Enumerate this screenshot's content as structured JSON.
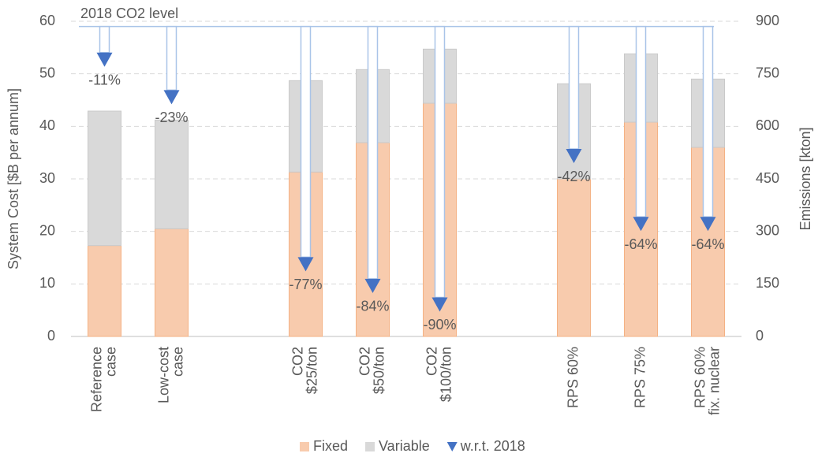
{
  "chart_data": {
    "type": "stacked_bar_with_markers",
    "categories": [
      "Reference\ncase",
      "Low-cost\ncase",
      null,
      "CO2\n$25/ton",
      "CO2\n$50/ton",
      "CO2\n$100/ton",
      null,
      "RPS 60%",
      "RPS 75%",
      "RPS 60%\nfix. nuclear"
    ],
    "series": [
      {
        "name": "Fixed",
        "color": "#f8cbad",
        "values": [
          17.3,
          20.5,
          null,
          31.3,
          36.9,
          44.4,
          null,
          30,
          40.8,
          36
        ]
      },
      {
        "name": "Variable",
        "color": "#d9d9d9",
        "values": [
          25.6,
          20.7,
          null,
          17.4,
          13.9,
          10.3,
          null,
          18.1,
          13,
          13
        ]
      },
      {
        "name": "w.r.t. 2018",
        "color": "#4472c4",
        "axis": "y2",
        "values": [
          788,
          681,
          null,
          204,
          142,
          89,
          null,
          513,
          319,
          319
        ],
        "change_labels": [
          "-11%",
          "-23%",
          null,
          "-77%",
          "-84%",
          "-90%",
          null,
          "-42%",
          "-64%",
          "-64%"
        ]
      }
    ],
    "reference_line": {
      "label": "2018 CO2 level",
      "value": 885
    },
    "ylabel": "System Cost [$B per annum]",
    "y2label": "Emissions [kton]",
    "ylim": [
      0,
      60
    ],
    "yticks": [
      0,
      10,
      20,
      30,
      40,
      50,
      60
    ],
    "y2lim": [
      0,
      900
    ],
    "y2ticks": [
      0,
      150,
      300,
      450,
      600,
      750,
      900
    ],
    "grid": true,
    "legend": "bottom"
  }
}
